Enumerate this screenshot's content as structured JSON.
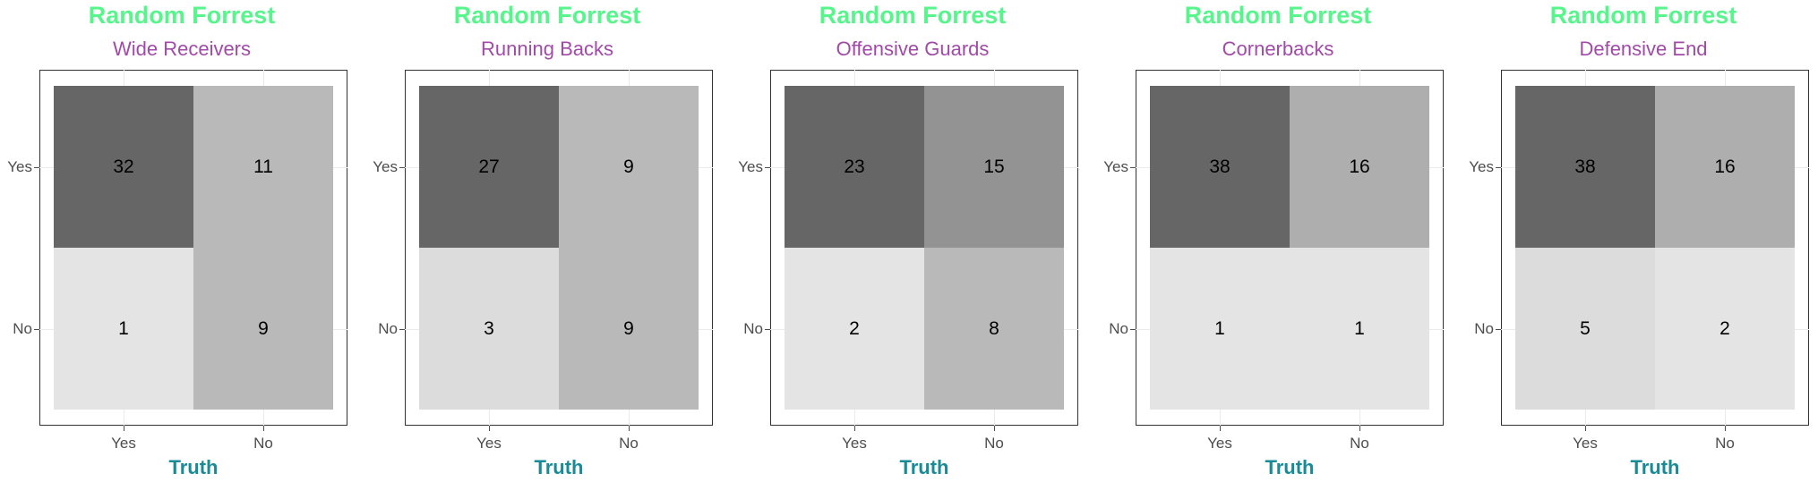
{
  "style": {
    "title_color": "#57f58c",
    "subtitle_color": "#a14aa8",
    "xlabel_color": "#198b97",
    "cell_colors": [
      "#666666",
      "#7f7f7f",
      "#939393",
      "#aeaeae",
      "#b9b9b9",
      "#c3c3c3",
      "#dcdcdc",
      "#e4e4e4"
    ]
  },
  "chart_data": [
    {
      "type": "heatmap",
      "title": "Random Forrest",
      "subtitle": "Wide Receivers",
      "xlabel": "Truth",
      "ylabel": "",
      "x_categories": [
        "Yes",
        "No"
      ],
      "y_categories": [
        "Yes",
        "No"
      ],
      "cells": [
        {
          "prediction": "Yes",
          "truth": "Yes",
          "value": 32
        },
        {
          "prediction": "Yes",
          "truth": "No",
          "value": 11
        },
        {
          "prediction": "No",
          "truth": "Yes",
          "value": 1
        },
        {
          "prediction": "No",
          "truth": "No",
          "value": 9
        }
      ]
    },
    {
      "type": "heatmap",
      "title": "Random Forrest",
      "subtitle": "Running Backs",
      "xlabel": "Truth",
      "ylabel": "",
      "x_categories": [
        "Yes",
        "No"
      ],
      "y_categories": [
        "Yes",
        "No"
      ],
      "cells": [
        {
          "prediction": "Yes",
          "truth": "Yes",
          "value": 27
        },
        {
          "prediction": "Yes",
          "truth": "No",
          "value": 9
        },
        {
          "prediction": "No",
          "truth": "Yes",
          "value": 3
        },
        {
          "prediction": "No",
          "truth": "No",
          "value": 9
        }
      ]
    },
    {
      "type": "heatmap",
      "title": "Random Forrest",
      "subtitle": "Offensive Guards",
      "xlabel": "Truth",
      "ylabel": "",
      "x_categories": [
        "Yes",
        "No"
      ],
      "y_categories": [
        "Yes",
        "No"
      ],
      "cells": [
        {
          "prediction": "Yes",
          "truth": "Yes",
          "value": 23
        },
        {
          "prediction": "Yes",
          "truth": "No",
          "value": 15
        },
        {
          "prediction": "No",
          "truth": "Yes",
          "value": 2
        },
        {
          "prediction": "No",
          "truth": "No",
          "value": 8
        }
      ]
    },
    {
      "type": "heatmap",
      "title": "Random Forrest",
      "subtitle": "Cornerbacks",
      "xlabel": "Truth",
      "ylabel": "",
      "x_categories": [
        "Yes",
        "No"
      ],
      "y_categories": [
        "Yes",
        "No"
      ],
      "cells": [
        {
          "prediction": "Yes",
          "truth": "Yes",
          "value": 38
        },
        {
          "prediction": "Yes",
          "truth": "No",
          "value": 16
        },
        {
          "prediction": "No",
          "truth": "Yes",
          "value": 1
        },
        {
          "prediction": "No",
          "truth": "No",
          "value": 1
        }
      ]
    },
    {
      "type": "heatmap",
      "title": "Random Forrest",
      "subtitle": "Defensive End",
      "xlabel": "Truth",
      "ylabel": "",
      "x_categories": [
        "Yes",
        "No"
      ],
      "y_categories": [
        "Yes",
        "No"
      ],
      "cells": [
        {
          "prediction": "Yes",
          "truth": "Yes",
          "value": 38
        },
        {
          "prediction": "Yes",
          "truth": "No",
          "value": 16
        },
        {
          "prediction": "No",
          "truth": "Yes",
          "value": 5
        },
        {
          "prediction": "No",
          "truth": "No",
          "value": 2
        }
      ]
    }
  ]
}
